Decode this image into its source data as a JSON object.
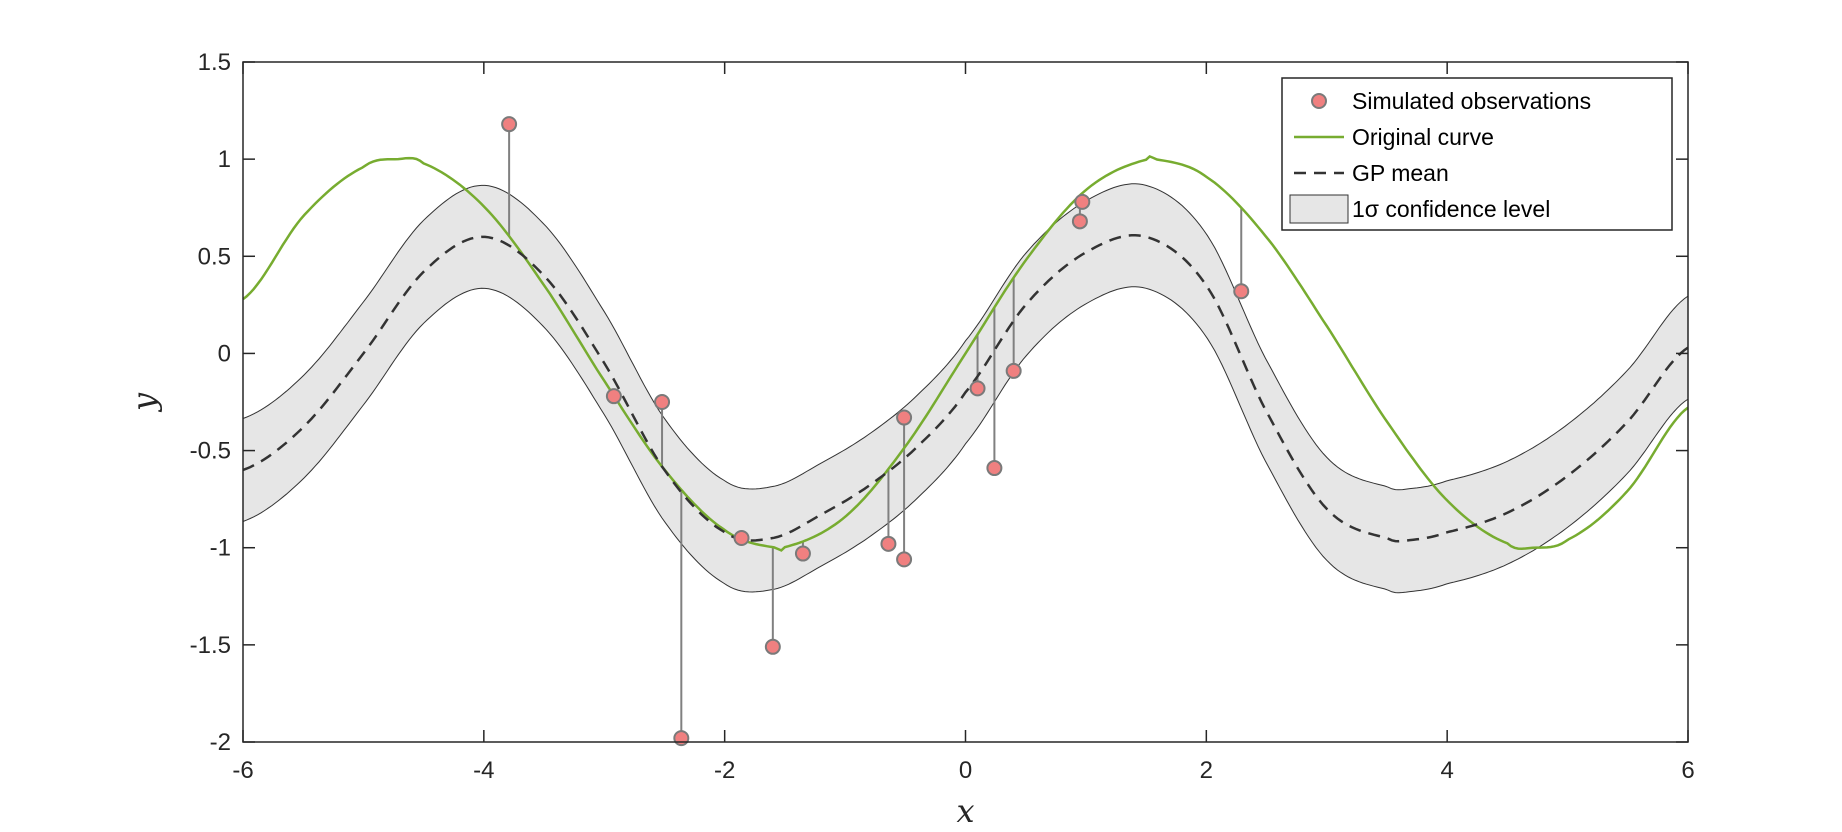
{
  "chart_data": {
    "type": "line",
    "title": "",
    "xlabel": "x",
    "ylabel": "y",
    "xlim": [
      -6,
      6
    ],
    "ylim": [
      -2,
      1.5
    ],
    "xticks": [
      -6,
      -4,
      -2,
      0,
      2,
      4,
      6
    ],
    "xtick_labels": [
      "-6",
      "-4",
      "-2",
      "0",
      "2",
      "4",
      "6"
    ],
    "yticks": [
      -2,
      -1.5,
      -1,
      -0.5,
      0,
      0.5,
      1,
      1.5
    ],
    "ytick_labels": [
      "-2",
      "-1.5",
      "-1",
      "-0.5",
      "0",
      "0.5",
      "1",
      "1.5"
    ],
    "grid": false,
    "legend_position": "top-right",
    "legend": [
      {
        "label": "Simulated observations",
        "kind": "marker",
        "color": "#f08080"
      },
      {
        "label": "Original curve",
        "kind": "line",
        "color": "#77ac30"
      },
      {
        "label": "GP mean",
        "kind": "dashed",
        "color": "#333333"
      },
      {
        "label": "1σ confidence level",
        "kind": "patch",
        "color": "#e6e6e6"
      }
    ],
    "series": [
      {
        "name": "Simulated observations",
        "type": "scatter",
        "color": "#f08080",
        "x": [
          -3.79,
          -2.92,
          -2.52,
          -2.36,
          -1.86,
          -1.6,
          -1.35,
          -0.64,
          -0.51,
          -0.51,
          0.1,
          0.24,
          0.4,
          0.95,
          0.97,
          2.29
        ],
        "y": [
          1.18,
          -0.22,
          -0.25,
          -1.98,
          -0.95,
          -1.51,
          -1.03,
          -0.98,
          -1.06,
          -0.33,
          -0.18,
          -0.59,
          -0.09,
          0.68,
          0.78,
          0.32
        ]
      },
      {
        "name": "Original curve",
        "type": "line",
        "color": "#77ac30",
        "x": [
          -6,
          -5.5,
          -5,
          -4.712,
          -4.5,
          -4,
          -3.5,
          -3,
          -2.5,
          -2,
          -1.571,
          -1.5,
          -1,
          -0.5,
          0,
          0.5,
          1,
          1.5,
          1.571,
          2,
          2.5,
          3,
          3.5,
          4,
          4.5,
          4.712,
          5,
          5.5,
          6
        ],
        "y": [
          0.279,
          0.706,
          0.959,
          1.0,
          0.978,
          0.757,
          0.351,
          -0.141,
          -0.598,
          -0.909,
          -1.0,
          -0.997,
          -0.841,
          -0.479,
          0.0,
          0.479,
          0.841,
          0.997,
          1.0,
          0.909,
          0.598,
          0.141,
          -0.351,
          -0.757,
          -0.978,
          -1.0,
          -0.959,
          -0.706,
          -0.279
        ]
      },
      {
        "name": "GP mean",
        "type": "line",
        "style": "dashed",
        "color": "#333333",
        "x": [
          -6,
          -5.5,
          -5,
          -4.5,
          -4,
          -3.5,
          -3,
          -2.5,
          -2,
          -1.6,
          -1.2,
          -0.8,
          -0.4,
          0,
          0.5,
          1,
          1.5,
          2,
          2.5,
          3,
          3.5,
          3.7,
          4,
          4.5,
          5,
          5.5,
          6
        ],
        "y": [
          -0.6,
          -0.38,
          0.0,
          0.42,
          0.6,
          0.4,
          -0.05,
          -0.6,
          -0.92,
          -0.95,
          -0.83,
          -0.68,
          -0.48,
          -0.2,
          0.25,
          0.52,
          0.6,
          0.35,
          -0.3,
          -0.8,
          -0.95,
          -0.96,
          -0.92,
          -0.82,
          -0.63,
          -0.35,
          0.03
        ]
      },
      {
        "name": "1σ confidence level",
        "type": "band",
        "color": "#e6e6e6",
        "half_width": 0.265
      }
    ],
    "residual_lines_color": "#808080"
  }
}
